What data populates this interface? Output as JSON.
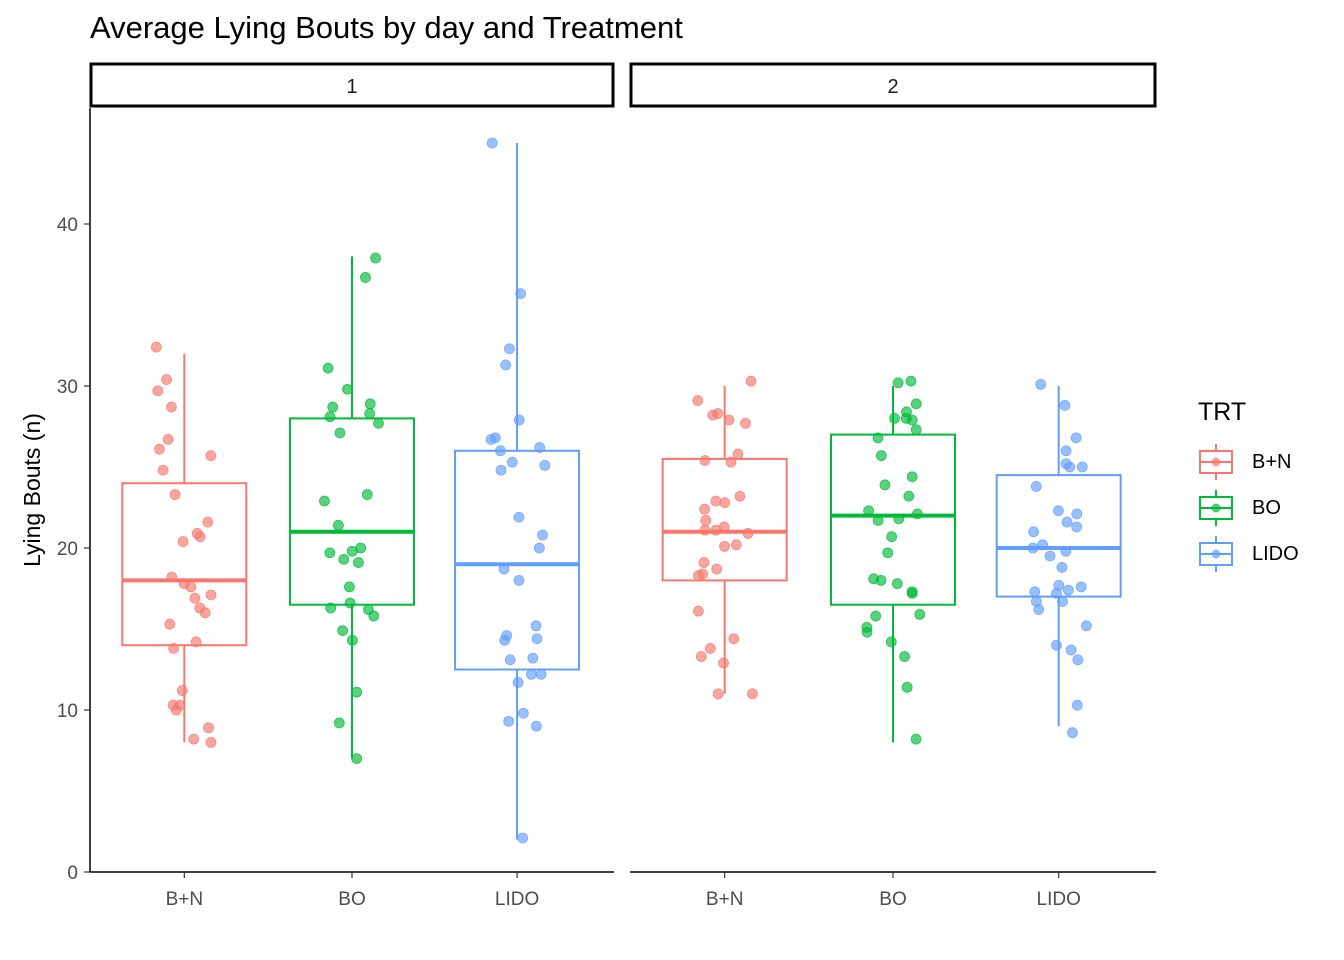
{
  "chart_data": {
    "type": "boxplot",
    "title": "Average Lying Bouts by day and Treatment",
    "xlabel": "",
    "ylabel": "Lying Bouts (n)",
    "ylim": [
      0,
      46
    ],
    "yticks": [
      0,
      10,
      20,
      30,
      40
    ],
    "categories": [
      "B+N",
      "BO",
      "LIDO"
    ],
    "legend": {
      "title": "TRT",
      "position": "right",
      "entries": [
        "B+N",
        "BO",
        "LIDO"
      ]
    },
    "colors": {
      "B+N": "#F8766D",
      "BO": "#00BA38",
      "LIDO": "#619CFF"
    },
    "panels": [
      {
        "label": "1",
        "boxes": [
          {
            "trt": "B+N",
            "lower": 8,
            "q1": 14,
            "median": 18,
            "q3": 24,
            "upper": 32,
            "points": [
              32.4,
              30.4,
              29.7,
              28.7,
              26.7,
              26.1,
              25.7,
              24.8,
              23.3,
              21.6,
              20.9,
              20.7,
              20.4,
              18.2,
              17.8,
              17.6,
              17.1,
              16.9,
              16.3,
              16.0,
              15.3,
              14.2,
              13.8,
              11.2,
              10.3,
              10.3,
              10.0,
              8.9,
              8.2,
              8.0
            ]
          },
          {
            "trt": "BO",
            "lower": 7,
            "q1": 16.5,
            "median": 21,
            "q3": 28,
            "upper": 38,
            "points": [
              37.9,
              36.7,
              31.1,
              29.8,
              28.9,
              28.7,
              28.3,
              28.1,
              27.7,
              27.1,
              23.3,
              22.9,
              21.4,
              20.0,
              19.8,
              19.7,
              19.3,
              19.1,
              17.6,
              16.6,
              16.3,
              16.2,
              15.8,
              14.9,
              14.3,
              11.1,
              9.2,
              7.0
            ]
          },
          {
            "trt": "LIDO",
            "lower": 2,
            "q1": 12.5,
            "median": 19,
            "q3": 26,
            "upper": 45,
            "points": [
              45.0,
              35.7,
              32.3,
              31.3,
              27.9,
              26.8,
              26.7,
              26.2,
              26.0,
              25.3,
              25.1,
              24.8,
              21.9,
              20.8,
              20.0,
              18.7,
              18.0,
              15.2,
              14.6,
              14.4,
              14.3,
              13.2,
              13.1,
              12.2,
              12.2,
              11.7,
              9.8,
              9.3,
              9.0,
              2.1
            ]
          }
        ]
      },
      {
        "label": "2",
        "boxes": [
          {
            "trt": "B+N",
            "lower": 11,
            "q1": 18,
            "median": 21,
            "q3": 25.5,
            "upper": 30,
            "points": [
              30.3,
              29.1,
              28.3,
              28.2,
              27.9,
              27.7,
              25.8,
              25.4,
              25.3,
              23.2,
              22.9,
              22.8,
              22.4,
              21.7,
              21.3,
              21.1,
              21.1,
              20.9,
              20.2,
              20.1,
              19.1,
              18.7,
              18.4,
              18.3,
              16.1,
              14.4,
              13.8,
              13.3,
              12.9,
              11.0,
              11.0
            ]
          },
          {
            "trt": "BO",
            "lower": 8,
            "q1": 16.5,
            "median": 22,
            "q3": 27,
            "upper": 30,
            "points": [
              30.3,
              30.2,
              28.9,
              28.4,
              28.0,
              28.0,
              27.9,
              27.3,
              26.8,
              25.7,
              24.4,
              23.9,
              23.2,
              22.3,
              22.1,
              21.8,
              21.7,
              20.7,
              19.7,
              18.1,
              18.0,
              17.8,
              17.3,
              17.2,
              15.9,
              15.8,
              15.1,
              14.8,
              14.2,
              13.3,
              11.4,
              8.2
            ]
          },
          {
            "trt": "LIDO",
            "lower": 9,
            "q1": 17,
            "median": 20,
            "q3": 24.5,
            "upper": 30,
            "points": [
              30.1,
              28.8,
              26.8,
              26.0,
              25.2,
              25.0,
              25.0,
              23.8,
              22.3,
              22.1,
              21.6,
              21.3,
              21.0,
              20.2,
              20.0,
              19.8,
              19.5,
              18.8,
              17.7,
              17.6,
              17.4,
              17.3,
              17.2,
              16.7,
              16.7,
              16.2,
              15.2,
              14.0,
              13.7,
              13.1,
              10.3,
              8.6
            ]
          }
        ]
      }
    ]
  }
}
